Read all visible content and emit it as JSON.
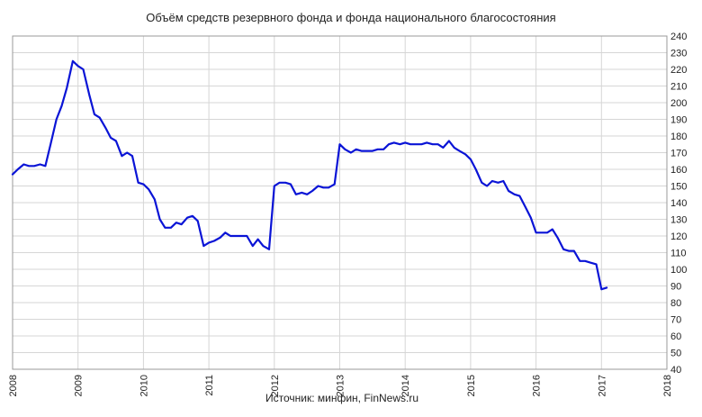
{
  "chart_data": {
    "type": "line",
    "title": "Объём средств резервного фонда и фонда национального благосостояния",
    "source": "Источник: минфин, FinNews.ru",
    "xlabel": "",
    "ylabel": "",
    "xlim": [
      2008,
      2018
    ],
    "ylim": [
      40,
      240
    ],
    "y_ticks": [
      40,
      50,
      60,
      70,
      80,
      90,
      100,
      110,
      120,
      130,
      140,
      150,
      160,
      170,
      180,
      190,
      200,
      210,
      220,
      230,
      240
    ],
    "x_ticks": [
      2008,
      2009,
      2010,
      2011,
      2012,
      2013,
      2014,
      2015,
      2016,
      2017,
      2018
    ],
    "grid": true,
    "legend": "none",
    "series": [
      {
        "name": "",
        "color": "#0a14d6",
        "x": [
          2008.0,
          2008.08,
          2008.17,
          2008.25,
          2008.33,
          2008.42,
          2008.5,
          2008.58,
          2008.67,
          2008.75,
          2008.83,
          2008.92,
          2009.0,
          2009.08,
          2009.17,
          2009.25,
          2009.33,
          2009.42,
          2009.5,
          2009.58,
          2009.67,
          2009.75,
          2009.83,
          2009.92,
          2010.0,
          2010.08,
          2010.17,
          2010.25,
          2010.33,
          2010.42,
          2010.5,
          2010.58,
          2010.67,
          2010.75,
          2010.83,
          2010.92,
          2011.0,
          2011.08,
          2011.17,
          2011.25,
          2011.33,
          2011.42,
          2011.5,
          2011.58,
          2011.67,
          2011.75,
          2011.83,
          2011.92,
          2012.0,
          2012.08,
          2012.17,
          2012.25,
          2012.33,
          2012.42,
          2012.5,
          2012.58,
          2012.67,
          2012.75,
          2012.83,
          2012.92,
          2013.0,
          2013.08,
          2013.17,
          2013.25,
          2013.33,
          2013.42,
          2013.5,
          2013.58,
          2013.67,
          2013.75,
          2013.83,
          2013.92,
          2014.0,
          2014.08,
          2014.17,
          2014.25,
          2014.33,
          2014.42,
          2014.5,
          2014.58,
          2014.67,
          2014.75,
          2014.83,
          2014.92,
          2015.0,
          2015.08,
          2015.17,
          2015.25,
          2015.33,
          2015.42,
          2015.5,
          2015.58,
          2015.67,
          2015.75,
          2015.83,
          2015.92,
          2016.0,
          2016.08,
          2016.17,
          2016.25,
          2016.33,
          2016.42,
          2016.5,
          2016.58,
          2016.67,
          2016.75,
          2016.83,
          2016.92,
          2017.0,
          2017.08
        ],
        "values": [
          157,
          160,
          163,
          162,
          162,
          163,
          162,
          175,
          190,
          198,
          209,
          225,
          222,
          220,
          205,
          193,
          191,
          185,
          179,
          177,
          168,
          170,
          168,
          152,
          151,
          148,
          142,
          130,
          125,
          125,
          128,
          127,
          131,
          132,
          129,
          114,
          116,
          117,
          119,
          122,
          120,
          120,
          120,
          120,
          114,
          118,
          114,
          112,
          150,
          152,
          152,
          151,
          145,
          146,
          145,
          147,
          150,
          149,
          149,
          151,
          175,
          172,
          170,
          172,
          171,
          171,
          171,
          172,
          172,
          175,
          176,
          175,
          176,
          175,
          175,
          175,
          176,
          175,
          175,
          173,
          177,
          173,
          171,
          169,
          166,
          160,
          152,
          150,
          153,
          152,
          153,
          147,
          145,
          144,
          138,
          131,
          122,
          122,
          122,
          124,
          119,
          112,
          111,
          111,
          105,
          105,
          104,
          103,
          88,
          89
        ]
      }
    ]
  }
}
